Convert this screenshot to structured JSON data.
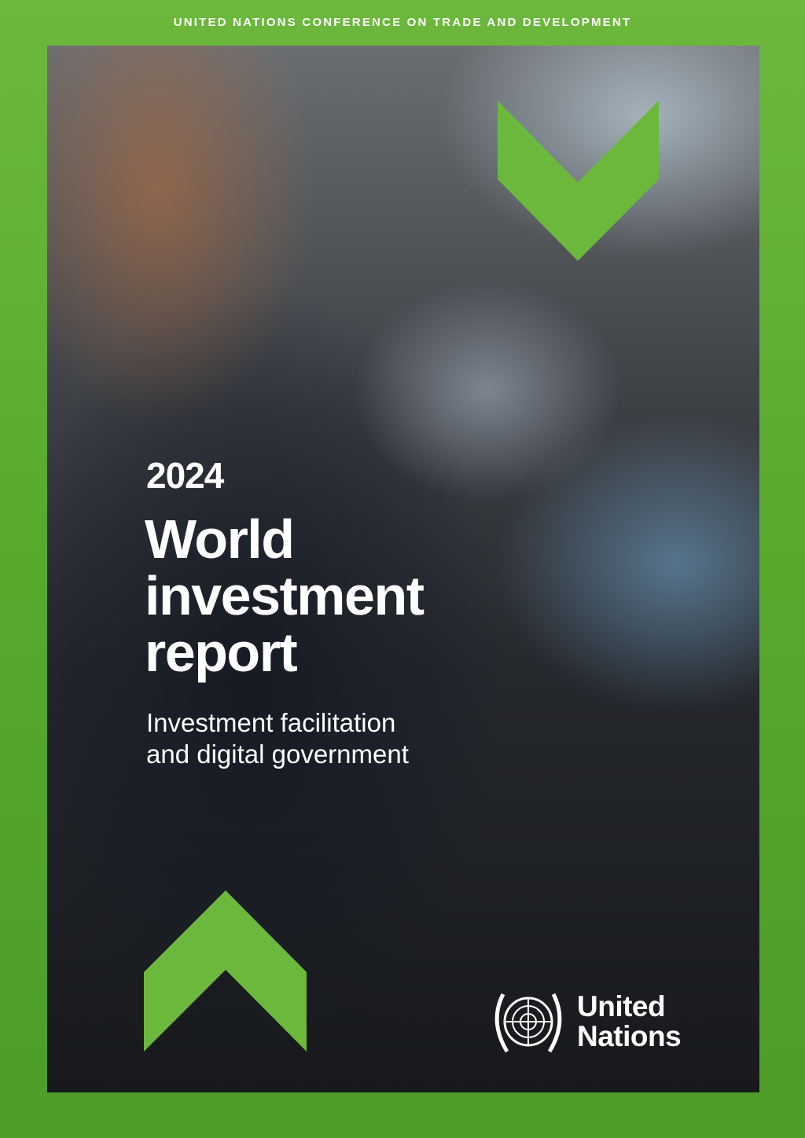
{
  "header": {
    "organization": "UNITED NATIONS CONFERENCE ON TRADE AND DEVELOPMENT"
  },
  "title": {
    "year": "2024",
    "lines": [
      "World",
      "investment",
      "report"
    ]
  },
  "subtitle": {
    "lines": [
      "Investment facilitation",
      "and digital government"
    ]
  },
  "logo": {
    "lines": [
      "United",
      "Nations"
    ]
  }
}
